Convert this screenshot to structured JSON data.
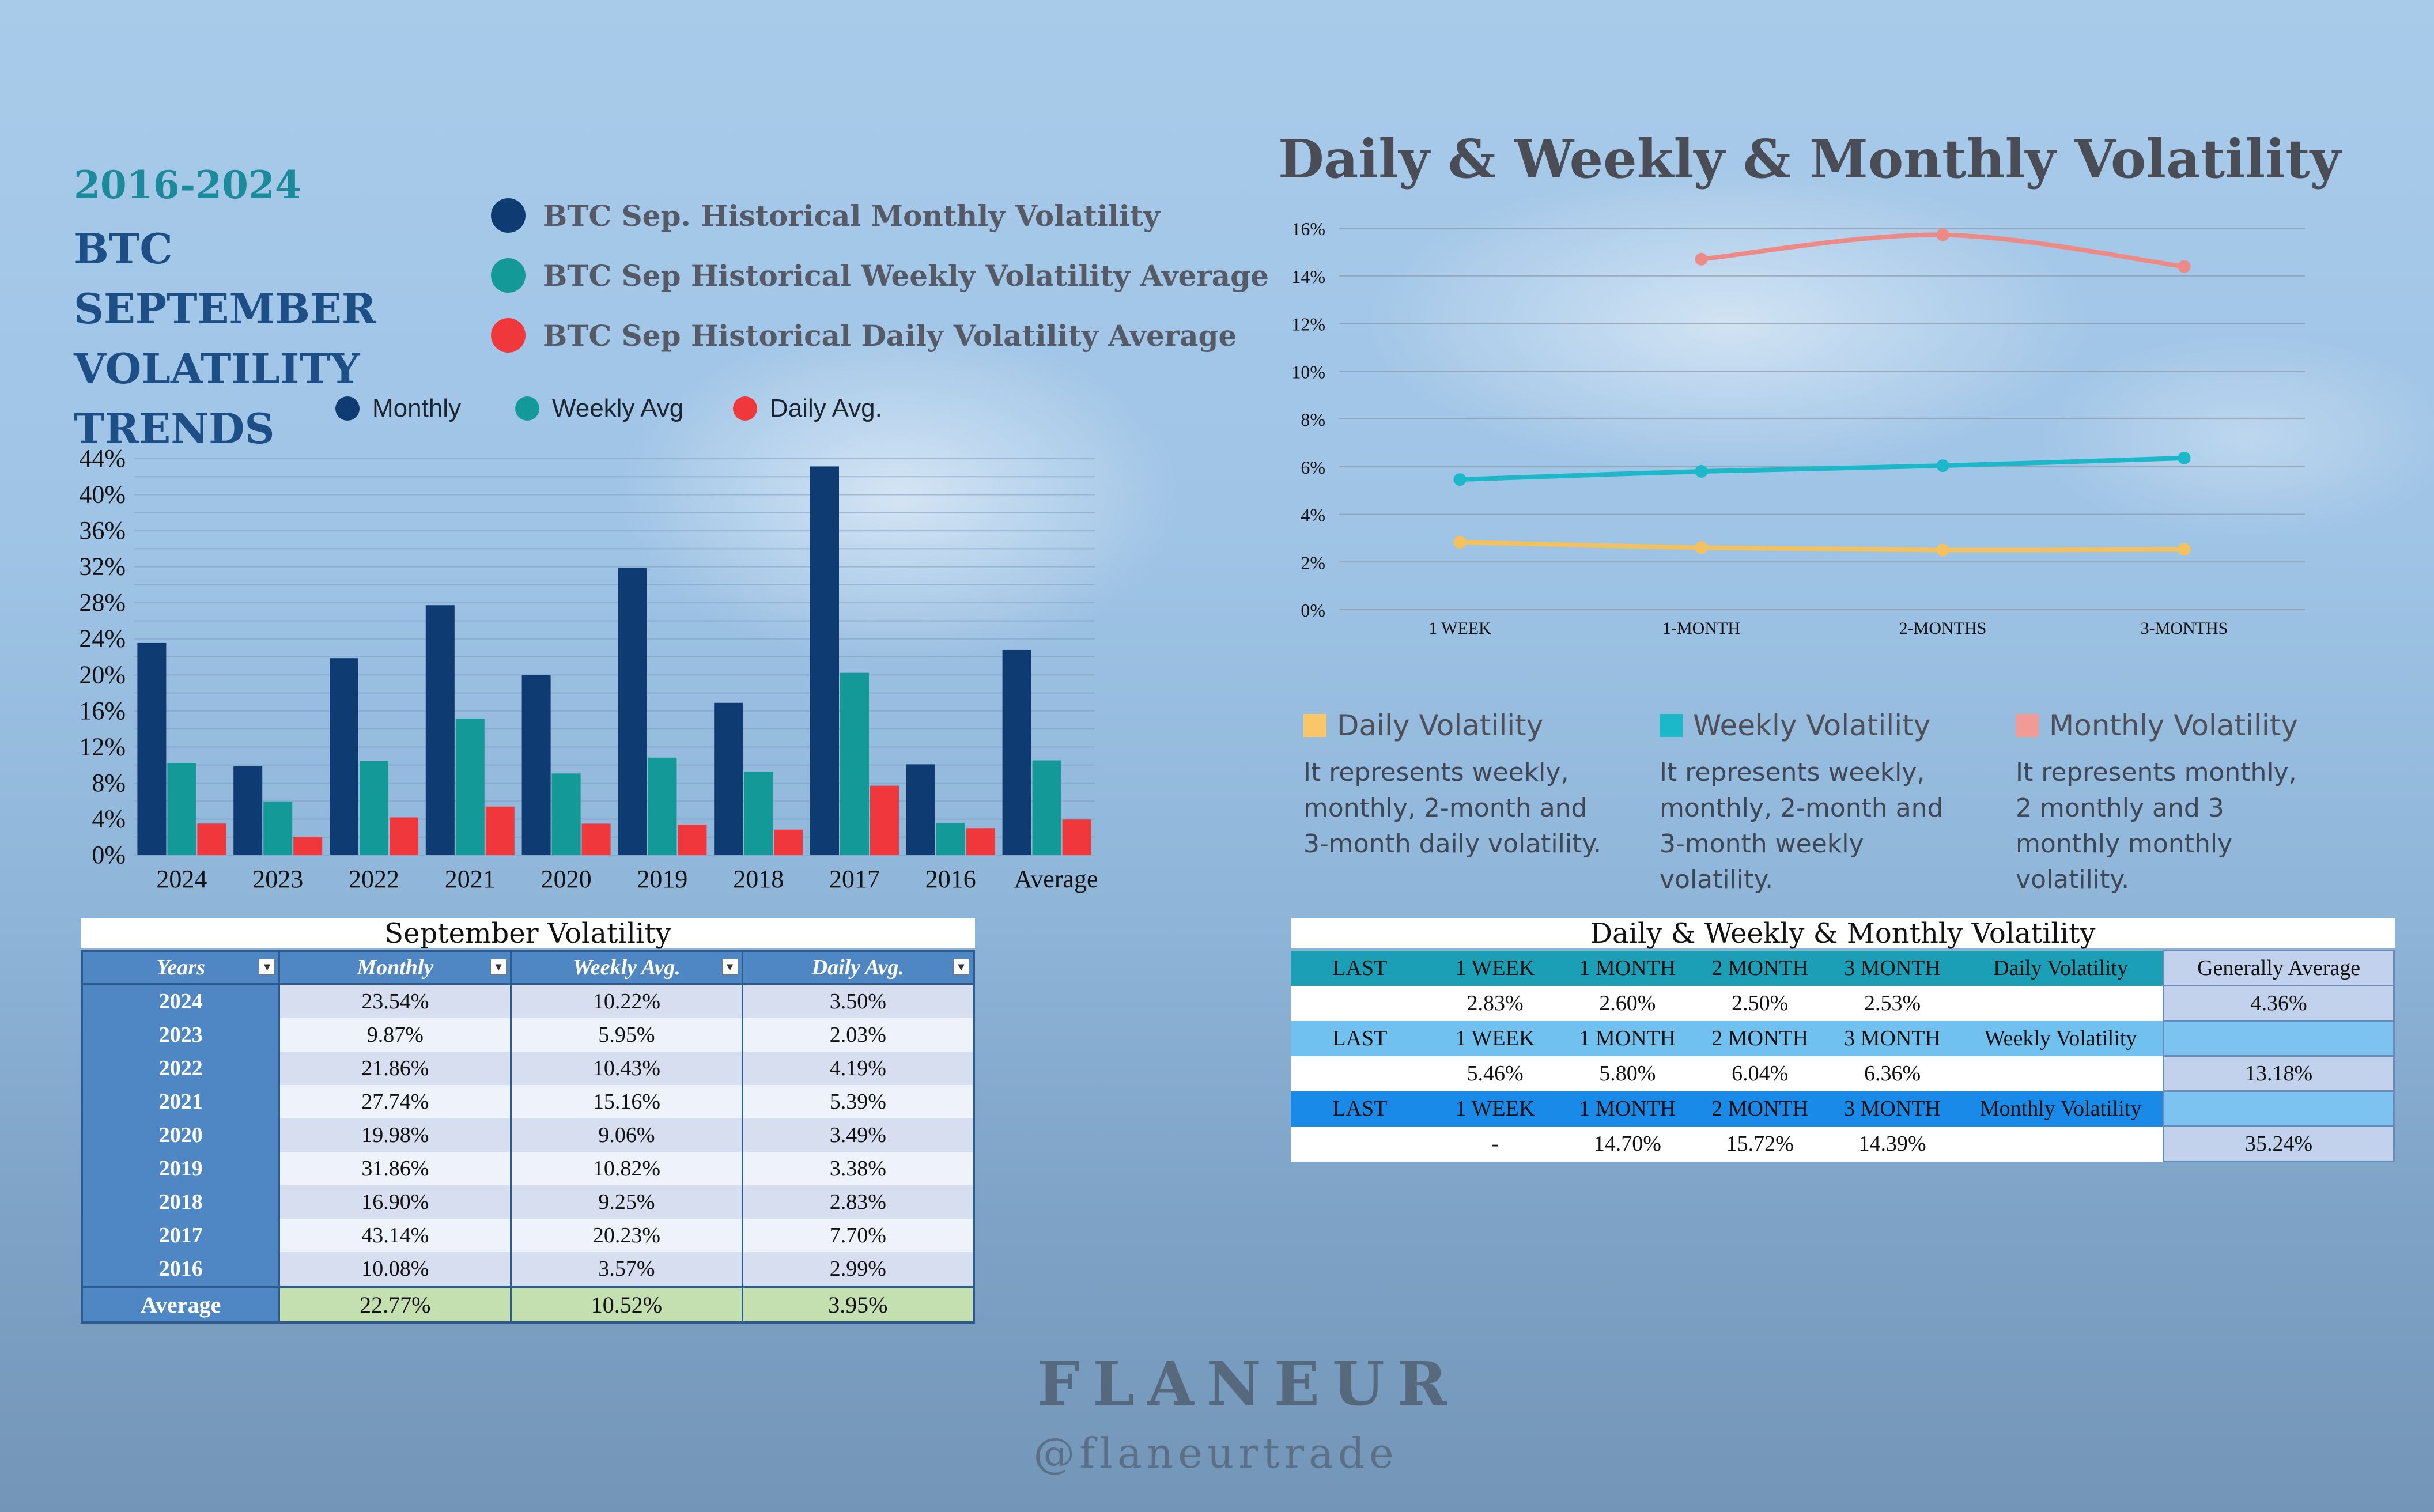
{
  "header": {
    "years_range": "2016-2024",
    "title": "BTC SEPTEMBER VOLATILITY TRENDS",
    "legend_big": [
      {
        "label": "BTC Sep. Historical Monthly Volatility",
        "color": "#0f3b73"
      },
      {
        "label": "BTC Sep Historical Weekly Volatility Average",
        "color": "#139a98"
      },
      {
        "label": "BTC Sep Historical Daily Volatility Average",
        "color": "#f0383c"
      }
    ],
    "legend_small": [
      {
        "label": "Monthly",
        "color": "#0f3b73"
      },
      {
        "label": "Weekly Avg",
        "color": "#139a98"
      },
      {
        "label": "Daily Avg.",
        "color": "#f0383c"
      }
    ]
  },
  "chart_data": [
    {
      "type": "bar",
      "categories": [
        "2024",
        "2023",
        "2022",
        "2021",
        "2020",
        "2019",
        "2018",
        "2017",
        "2016",
        "Average"
      ],
      "series": [
        {
          "name": "Monthly",
          "color": "#0f3b73",
          "values": [
            23.54,
            9.87,
            21.86,
            27.74,
            19.98,
            31.86,
            16.9,
            43.14,
            10.08,
            22.77
          ]
        },
        {
          "name": "Weekly Avg",
          "color": "#139a98",
          "values": [
            10.22,
            5.95,
            10.43,
            15.16,
            9.06,
            10.82,
            9.25,
            20.23,
            3.57,
            10.52
          ]
        },
        {
          "name": "Daily Avg.",
          "color": "#f0383c",
          "values": [
            3.5,
            2.03,
            4.19,
            5.39,
            3.49,
            3.38,
            2.83,
            7.7,
            2.99,
            3.95
          ]
        }
      ],
      "ylim": [
        0,
        44
      ],
      "yticks": [
        "0%",
        "4%",
        "8%",
        "12%",
        "16%",
        "20%",
        "24%",
        "28%",
        "32%",
        "36%",
        "40%",
        "44%"
      ],
      "grid": true,
      "legend": "top"
    },
    {
      "type": "line",
      "title": "Daily & Weekly & Monthly Volatility",
      "categories": [
        "1 WEEK",
        "1-MONTH",
        "2-MONTHS",
        "3-MONTHS"
      ],
      "series": [
        {
          "name": "Daily Volatility",
          "color": "#f4c15f",
          "values": [
            2.83,
            2.6,
            2.5,
            2.53
          ]
        },
        {
          "name": "Weekly Volatility",
          "color": "#1ab8c8",
          "values": [
            5.46,
            5.8,
            6.04,
            6.36
          ]
        },
        {
          "name": "Monthly Volatility",
          "color": "#ee8a86",
          "values": [
            null,
            14.7,
            15.72,
            14.39
          ]
        }
      ],
      "ylim": [
        0,
        16
      ],
      "yticks": [
        "0%",
        "2%",
        "4%",
        "6%",
        "8%",
        "10%",
        "12%",
        "14%",
        "16%"
      ],
      "grid": true,
      "legend": "bottom"
    }
  ],
  "line_legend": [
    {
      "title": "Daily Volatility",
      "color": "#f9c76a",
      "desc": "It represents weekly, monthly, 2-month and 3-month daily volatility."
    },
    {
      "title": "Weekly Volatility",
      "color": "#1ab8c8",
      "desc": "It represents weekly, monthly, 2-month and 3-month weekly volatility."
    },
    {
      "title": "Monthly Volatility",
      "color": "#f29a96",
      "desc": "It represents monthly, 2 monthly and 3 monthly monthly volatility."
    }
  ],
  "sept_table": {
    "title": "September Volatility",
    "headers": [
      "Years",
      "Monthly",
      "Weekly Avg.",
      "Daily Avg."
    ],
    "rows": [
      [
        "2024",
        "23.54%",
        "10.22%",
        "3.50%"
      ],
      [
        "2023",
        "9.87%",
        "5.95%",
        "2.03%"
      ],
      [
        "2022",
        "21.86%",
        "10.43%",
        "4.19%"
      ],
      [
        "2021",
        "27.74%",
        "15.16%",
        "5.39%"
      ],
      [
        "2020",
        "19.98%",
        "9.06%",
        "3.49%"
      ],
      [
        "2019",
        "31.86%",
        "10.82%",
        "3.38%"
      ],
      [
        "2018",
        "16.90%",
        "9.25%",
        "2.83%"
      ],
      [
        "2017",
        "43.14%",
        "20.23%",
        "7.70%"
      ],
      [
        "2016",
        "10.08%",
        "3.57%",
        "2.99%"
      ]
    ],
    "average": [
      "Average",
      "22.77%",
      "10.52%",
      "3.95%"
    ]
  },
  "dwm_table": {
    "title": "Daily & Weekly & Monthly Volatility",
    "rows": [
      [
        "LAST",
        "1 WEEK",
        "1 MONTH",
        "2 MONTH",
        "3 MONTH",
        "Daily Volatility",
        "Generally Average"
      ],
      [
        "",
        "2.83%",
        "2.60%",
        "2.50%",
        "2.53%",
        "",
        "4.36%"
      ],
      [
        "LAST",
        "1 WEEK",
        "1 MONTH",
        "2 MONTH",
        "3 MONTH",
        "Weekly Volatility",
        ""
      ],
      [
        "",
        "5.46%",
        "5.80%",
        "6.04%",
        "6.36%",
        "",
        "13.18%"
      ],
      [
        "LAST",
        "1 WEEK",
        "1 MONTH",
        "2 MONTH",
        "3 MONTH",
        "Monthly Volatility",
        ""
      ],
      [
        "",
        "-",
        "14.70%",
        "15.72%",
        "14.39%",
        "",
        "35.24%"
      ]
    ]
  },
  "branding": {
    "name": "FLANEUR",
    "handle": "@flaneurtrade"
  }
}
